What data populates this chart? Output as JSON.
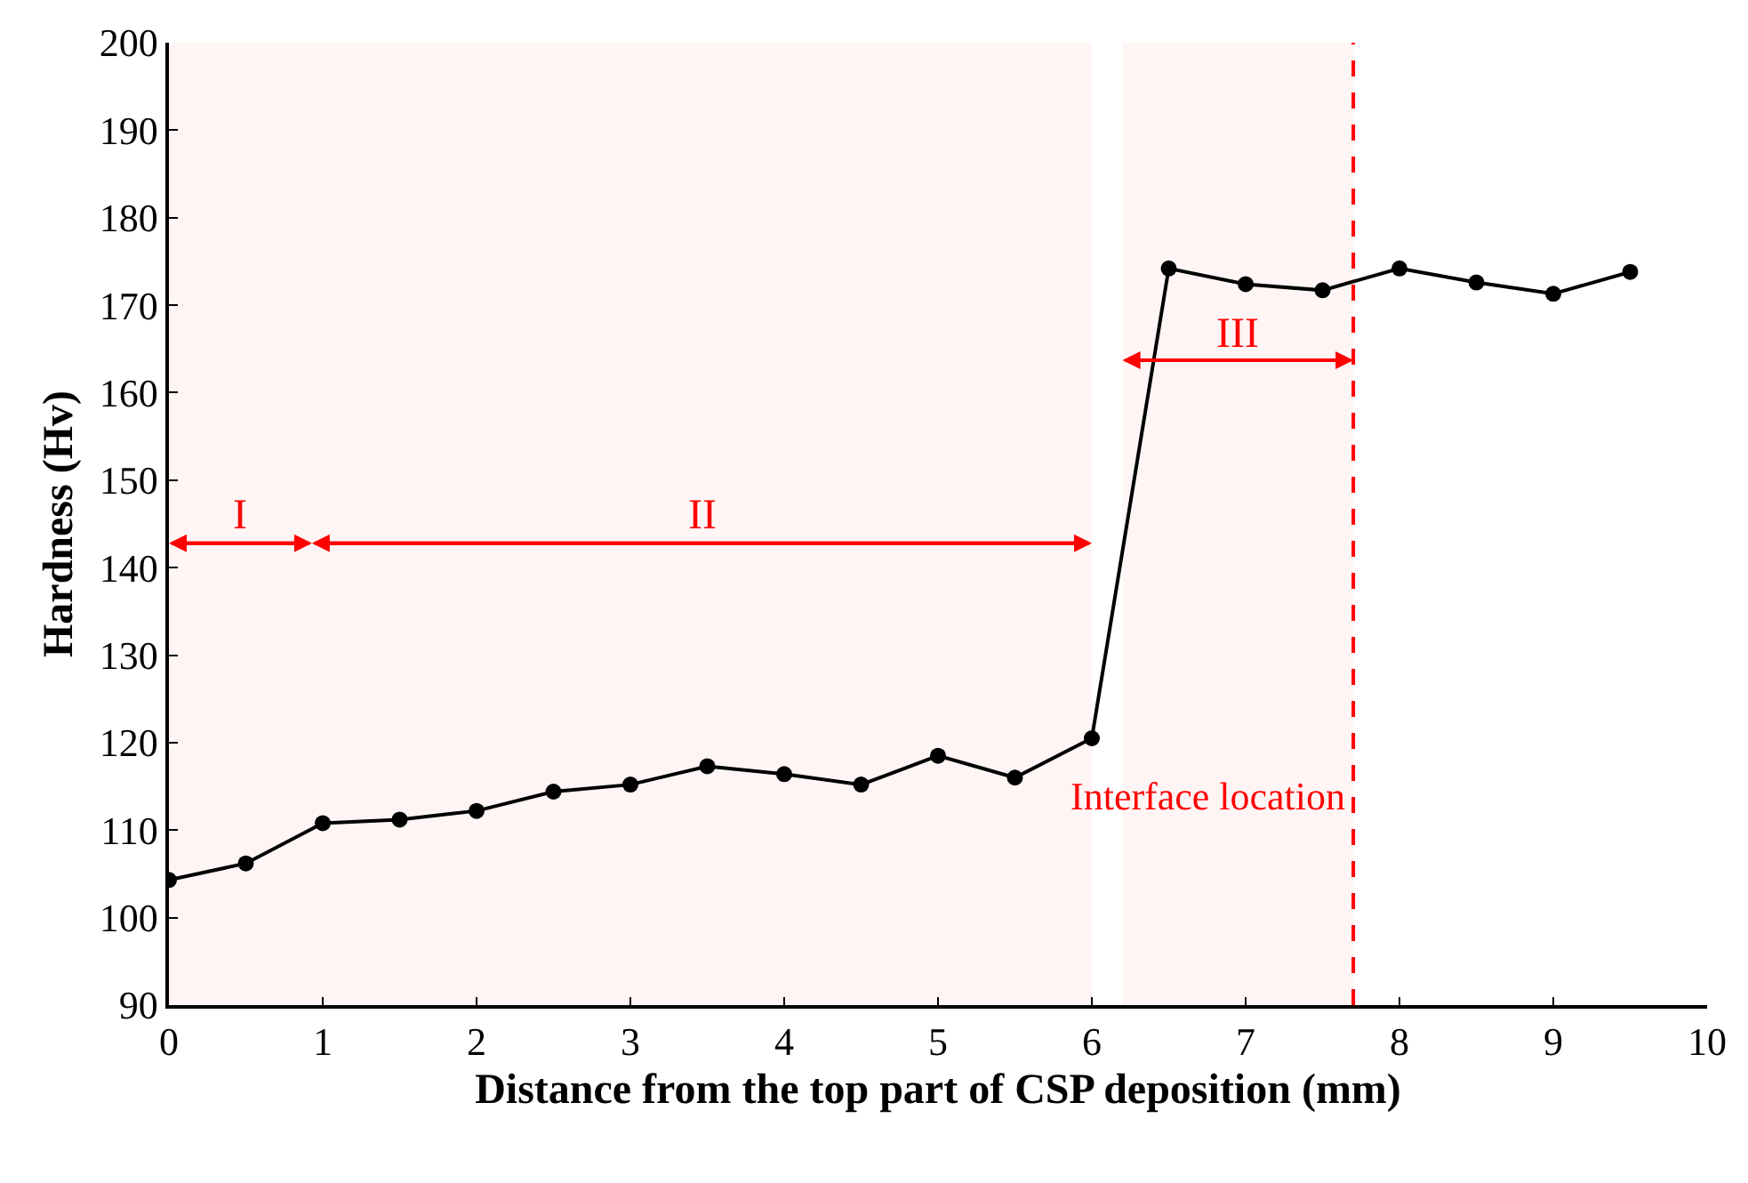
{
  "chart_data": {
    "type": "line",
    "xlabel": "Distance from the top part of CSP deposition (mm)",
    "ylabel": "Hardness (Hv)",
    "x": [
      0,
      0.5,
      1,
      1.5,
      2,
      2.5,
      3,
      3.5,
      4,
      4.5,
      5,
      5.5,
      6,
      6.5,
      7,
      7.5,
      8,
      8.5,
      9,
      9.5
    ],
    "series": [
      {
        "color": "#000000",
        "values": [
          104.3,
          106.2,
          110.8,
          111.2,
          112.2,
          114.4,
          115.2,
          117.3,
          116.4,
          115.2,
          118.5,
          116.0,
          120.5,
          174.2,
          172.4,
          171.7,
          174.2,
          172.6,
          171.3,
          173.8
        ]
      }
    ],
    "xlim": [
      0,
      10
    ],
    "xticks": [
      0,
      1,
      2,
      3,
      4,
      5,
      6,
      7,
      8,
      9,
      10
    ],
    "ylim": [
      90,
      200
    ],
    "yticks": [
      90,
      100,
      110,
      120,
      130,
      140,
      150,
      160,
      170,
      180,
      190,
      200
    ],
    "marker": "circle",
    "line_style": "solid",
    "grid": false,
    "ref_lines": [
      {
        "axis": "x",
        "value": 7.7,
        "label": "Interface location",
        "color": "#ff0000",
        "line_style": "dashed"
      }
    ],
    "bands": [
      {
        "axis": "x",
        "from": 0,
        "to": 0.93,
        "label": "I",
        "color": "#ff0000"
      },
      {
        "axis": "x",
        "from": 0.93,
        "to": 6.0,
        "label": "II",
        "color": "#ff0000"
      },
      {
        "axis": "x",
        "from": 6.2,
        "to": 7.7,
        "label": "III",
        "color": "#ff0000"
      }
    ]
  }
}
